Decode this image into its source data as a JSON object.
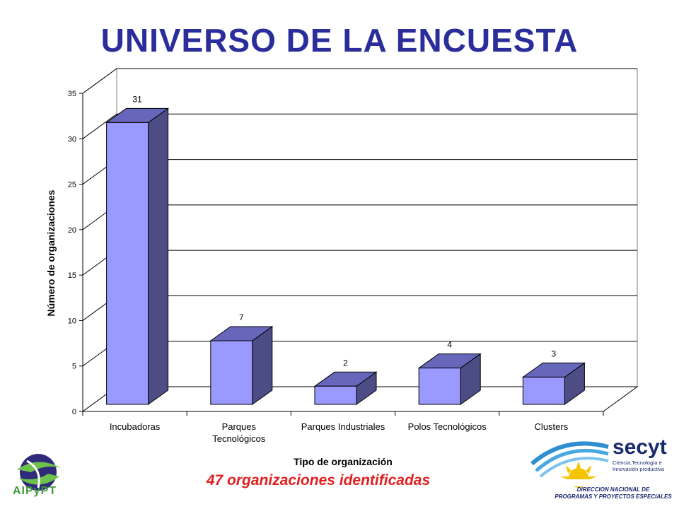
{
  "title": "UNIVERSO DE LA ENCUESTA",
  "summary": "47 organizaciones identificadas",
  "logos": {
    "left_text": "AIPyPT",
    "right_brand": "secyt",
    "right_sub": "Ciencia,Tecnología e Innovación productiva",
    "right_line1": "DIRECCION NACIONAL DE",
    "right_line2": "PROGRAMAS Y PROYECTOS ESPECIALES"
  },
  "colors": {
    "title": "#2a2d9a",
    "bar_front": "#9999ff",
    "bar_top": "#6666bb",
    "bar_side": "#4d4d86",
    "summary": "#e02020"
  },
  "chart_data": {
    "type": "bar",
    "title": "",
    "xlabel": "Tipo de organización",
    "ylabel": "Número de organizaciones",
    "categories": [
      "Incubadoras",
      "Parques Tecnológicos",
      "Parques Industriales",
      "Polos Tecnológicos",
      "Clusters"
    ],
    "category_lines": [
      [
        "Incubadoras"
      ],
      [
        "Parques",
        "Tecnológicos"
      ],
      [
        "Parques Industriales"
      ],
      [
        "Polos Tecnológicos"
      ],
      [
        "Clusters"
      ]
    ],
    "values": [
      31,
      7,
      2,
      4,
      3
    ],
    "ylim": [
      0,
      35
    ],
    "yticks": [
      0,
      5,
      10,
      15,
      20,
      25,
      30,
      35
    ],
    "grid": true,
    "three_d": true
  }
}
